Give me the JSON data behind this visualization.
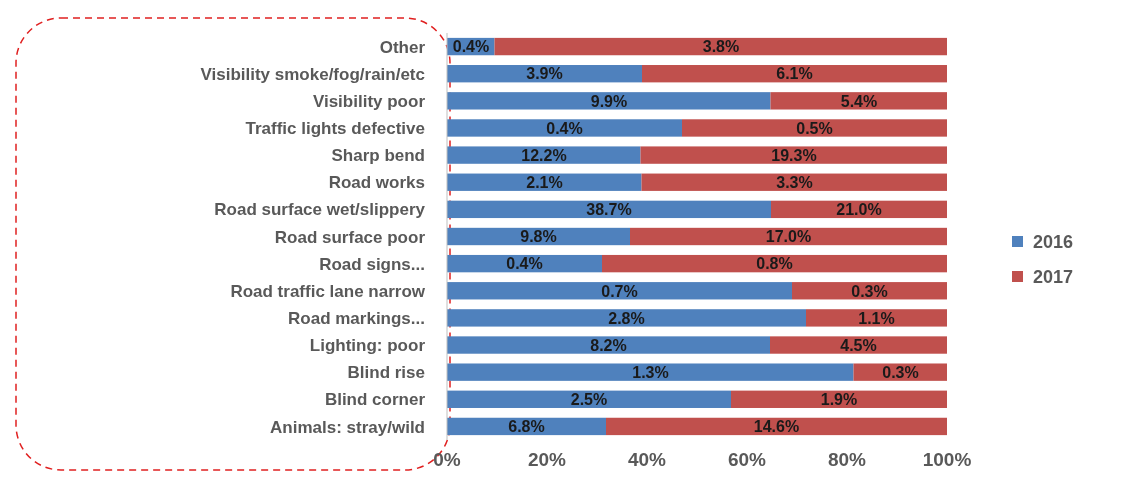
{
  "chart_data": {
    "type": "bar",
    "orientation": "horizontal",
    "stacked": true,
    "categories": [
      "Other",
      "Visibility smoke/fog/rain/etc",
      "Visibility poor",
      "Traffic lights defective",
      "Sharp bend",
      "Road works",
      "Road surface wet/slippery",
      "Road surface poor",
      "Road signs...",
      "Road traffic lane narrow",
      "Road markings...",
      "Lighting: poor",
      "Blind rise",
      "Blind corner",
      "Animals: stray/wild"
    ],
    "series": [
      {
        "name": "2016",
        "color": "#4f81bd",
        "values": [
          9.5,
          39.0,
          64.7,
          47,
          38.7,
          38.9,
          64.8,
          36.6,
          31,
          69,
          71.8,
          64.6,
          81.3,
          56.8,
          31.8
        ]
      },
      {
        "name": "2017",
        "color": "#c0504d",
        "values": [
          90.5,
          61.0,
          35.3,
          53,
          61.3,
          61.1,
          35.2,
          63.4,
          69,
          31,
          28.2,
          35.4,
          18.7,
          43.2,
          68.2
        ]
      }
    ],
    "annotations": [
      {
        "text": "0.4%",
        "x": 4.8,
        "y": "Other"
      },
      {
        "text": "3.9%",
        "x": 19.5,
        "y": "Visibility smoke/fog/rain/etc"
      },
      {
        "text": "9.9%",
        "x": 32.4,
        "y": "Visibility poor"
      },
      {
        "text": "0.4%",
        "x": 23.5,
        "y": "Traffic lights defective"
      },
      {
        "text": "12.2%",
        "x": 19.4,
        "y": "Sharp bend"
      },
      {
        "text": "2.1%",
        "x": 19.5,
        "y": "Road works"
      },
      {
        "text": "38.7%",
        "x": 32.4,
        "y": "Road surface wet/slippery"
      },
      {
        "text": "9.8%",
        "x": 18.3,
        "y": "Road surface poor"
      },
      {
        "text": "0.4%",
        "x": 15.5,
        "y": "Road signs..."
      },
      {
        "text": "0.7%",
        "x": 34.5,
        "y": "Road traffic lane narrow"
      },
      {
        "text": "2.8%",
        "x": 35.9,
        "y": "Road markings..."
      },
      {
        "text": "8.2%",
        "x": 32.3,
        "y": "Lighting: poor"
      },
      {
        "text": "1.3%",
        "x": 40.7,
        "y": "Blind rise"
      },
      {
        "text": "2.5%",
        "x": 28.4,
        "y": "Blind corner"
      },
      {
        "text": "6.8%",
        "x": 15.9,
        "y": "Animals: stray/wild"
      },
      {
        "text": "3.8%",
        "x": 54.8,
        "y": "Other"
      },
      {
        "text": "6.1%",
        "x": 69.5,
        "y": "Visibility smoke/fog/rain/etc"
      },
      {
        "text": "5.4%",
        "x": 82.4,
        "y": "Visibility poor"
      },
      {
        "text": "0.5%",
        "x": 73.5,
        "y": "Traffic lights defective"
      },
      {
        "text": "19.3%",
        "x": 69.4,
        "y": "Sharp bend"
      },
      {
        "text": "3.3%",
        "x": 69.5,
        "y": "Road works"
      },
      {
        "text": "21.0%",
        "x": 82.4,
        "y": "Road surface wet/slippery"
      },
      {
        "text": "17.0%",
        "x": 68.3,
        "y": "Road surface poor"
      },
      {
        "text": "0.8%",
        "x": 65.5,
        "y": "Road signs..."
      },
      {
        "text": "0.3%",
        "x": 84.5,
        "y": "Road traffic lane narrow"
      },
      {
        "text": "1.1%",
        "x": 85.9,
        "y": "Road markings..."
      },
      {
        "text": "4.5%",
        "x": 82.3,
        "y": "Lighting: poor"
      },
      {
        "text": "0.3%",
        "x": 90.7,
        "y": "Blind rise"
      },
      {
        "text": "1.9%",
        "x": 78.4,
        "y": "Blind corner"
      },
      {
        "text": "14.6%",
        "x": 65.9,
        "y": "Animals: stray/wild"
      }
    ],
    "xlim": [
      0,
      100
    ],
    "xticks": [
      {
        "value": 0,
        "label": "0%"
      },
      {
        "value": 20,
        "label": "20%"
      },
      {
        "value": 40,
        "label": "40%"
      },
      {
        "value": 60,
        "label": "60%"
      },
      {
        "value": 80,
        "label": "80%"
      },
      {
        "value": 100,
        "label": "100%"
      }
    ],
    "legend": "right"
  }
}
